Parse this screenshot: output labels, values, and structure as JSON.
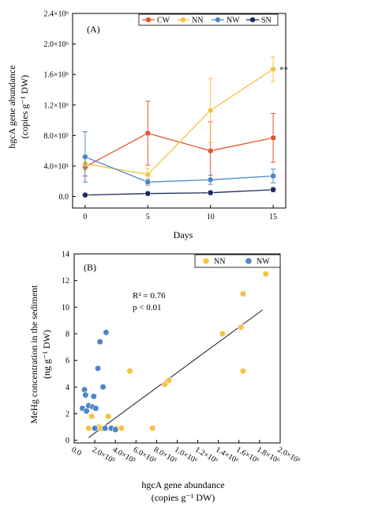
{
  "chart_data": [
    {
      "panel": "(A)",
      "type": "line",
      "x": [
        0,
        5,
        10,
        15
      ],
      "xlabel": "Days",
      "ylabel_lines": [
        "hgcA gene abundance",
        "(copies g⁻¹ DW)"
      ],
      "ylim": [
        -0.15,
        2.4
      ],
      "yticks": [
        0.0,
        0.4,
        0.8,
        1.2,
        1.6,
        2.0,
        2.4
      ],
      "ytick_labels": [
        "0.0",
        "4.0×10⁵",
        "8.0×10⁵",
        "1.2×10⁶",
        "1.6×10⁶",
        "2.0×10⁶",
        "2.4×10⁶"
      ],
      "xticks": [
        0,
        5,
        10,
        15
      ],
      "xtick_labels": [
        "0",
        "5",
        "10",
        "15"
      ],
      "unit_scale": "×10⁶ copies g⁻¹ DW",
      "series": [
        {
          "name": "CW",
          "color": "#e0562a",
          "values": [
            0.39,
            0.83,
            0.6,
            0.77
          ],
          "errors": [
            0.12,
            0.42,
            0.38,
            0.32
          ]
        },
        {
          "name": "NN",
          "color": "#f5c242",
          "values": [
            0.43,
            0.29,
            1.13,
            1.67
          ],
          "errors": [
            0.08,
            0.08,
            0.42,
            0.16
          ]
        },
        {
          "name": "NW",
          "color": "#4f86c6",
          "values": [
            0.52,
            0.19,
            0.22,
            0.27
          ],
          "errors": [
            0.33,
            0.04,
            0.06,
            0.09
          ]
        },
        {
          "name": "SN",
          "color": "#1f2a5c",
          "values": [
            0.02,
            0.04,
            0.05,
            0.09
          ],
          "errors": [
            0.01,
            0.02,
            0.02,
            0.03
          ]
        }
      ],
      "annotations": [
        {
          "text": "**",
          "x": 15,
          "y": 1.67
        }
      ],
      "legend_position": "top-right"
    },
    {
      "panel": "(B)",
      "type": "scatter",
      "xlabel_lines": [
        "hgcA gene abundance",
        "(copies g⁻¹ DW)"
      ],
      "ylabel_lines": [
        "MeHg concentration in the sediment",
        "(ng g⁻¹ DW)"
      ],
      "xlim": [
        0.0,
        2.0
      ],
      "ylim": [
        -0.2,
        14
      ],
      "xticks": [
        0.0,
        0.2,
        0.4,
        0.6,
        0.8,
        1.0,
        1.2,
        1.4,
        1.6,
        1.8,
        2.0
      ],
      "xtick_labels": [
        "0.0",
        "2.0×10⁵",
        "4.0×10⁵",
        "6.0×10⁵",
        "8.0×10⁵",
        "1.0×10⁶",
        "1.2×10⁶",
        "1.4×10⁶",
        "1.6×10⁶",
        "1.8×10⁶",
        "2.0×10⁶"
      ],
      "yticks": [
        0,
        2,
        4,
        6,
        8,
        10,
        12,
        14
      ],
      "ytick_labels": [
        "0",
        "2",
        "4",
        "6",
        "8",
        "10",
        "12",
        "14"
      ],
      "unit_scale": "×10⁶ copies g⁻¹ DW",
      "r2_text": "R² = 0.76",
      "p_text": "p < 0.01",
      "trendline": {
        "x": [
          0.14,
          1.83
        ],
        "y": [
          0.2,
          9.8
        ]
      },
      "series": [
        {
          "name": "NN",
          "color": "#f5c242",
          "points": [
            [
              0.14,
              0.9
            ],
            [
              0.17,
              1.8
            ],
            [
              0.24,
              1.0
            ],
            [
              0.26,
              0.9
            ],
            [
              0.33,
              1.8
            ],
            [
              0.41,
              0.9
            ],
            [
              0.46,
              0.9
            ],
            [
              0.54,
              5.2
            ],
            [
              0.76,
              0.9
            ],
            [
              0.88,
              4.2
            ],
            [
              0.92,
              4.5
            ],
            [
              1.44,
              8.0
            ],
            [
              1.62,
              8.5
            ],
            [
              1.64,
              11.0
            ],
            [
              1.64,
              5.2
            ],
            [
              1.86,
              12.5
            ]
          ]
        },
        {
          "name": "NW",
          "color": "#4f86c6",
          "points": [
            [
              0.08,
              2.4
            ],
            [
              0.1,
              3.8
            ],
            [
              0.11,
              3.4
            ],
            [
              0.12,
              2.2
            ],
            [
              0.14,
              2.6
            ],
            [
              0.18,
              2.5
            ],
            [
              0.19,
              3.3
            ],
            [
              0.21,
              2.4
            ],
            [
              0.23,
              5.4
            ],
            [
              0.25,
              7.4
            ],
            [
              0.28,
              4.0
            ],
            [
              0.31,
              8.1
            ],
            [
              0.3,
              0.9
            ],
            [
              0.2,
              0.9
            ],
            [
              0.36,
              0.9
            ],
            [
              0.4,
              0.8
            ]
          ]
        }
      ],
      "legend_position": "top-right"
    }
  ]
}
